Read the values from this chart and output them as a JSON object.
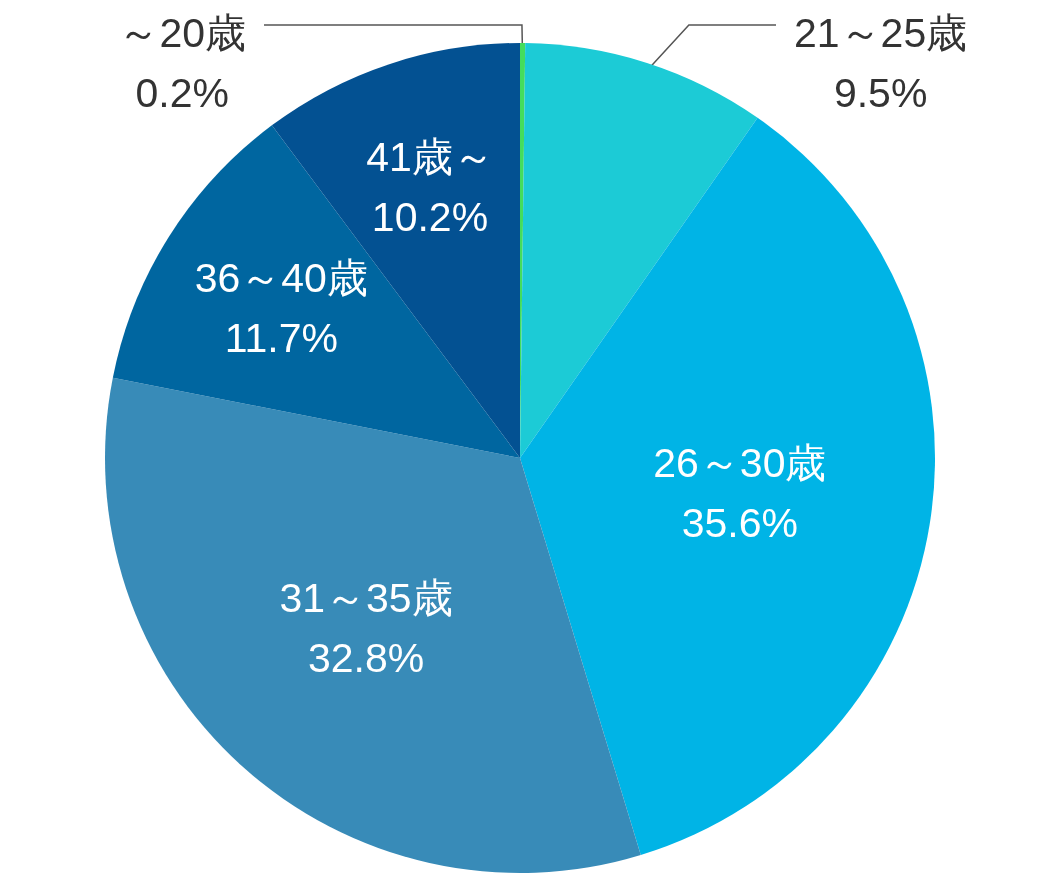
{
  "chart_data": {
    "type": "pie",
    "categories": [
      "～20歳",
      "21～25歳",
      "26～30歳",
      "31～35歳",
      "36～40歳",
      "41歳～"
    ],
    "values": [
      0.2,
      9.5,
      35.6,
      32.8,
      11.7,
      10.2
    ],
    "value_labels": [
      "0.2%",
      "9.5%",
      "35.6%",
      "32.8%",
      "11.7%",
      "10.2%"
    ],
    "colors": [
      "#44dd5c",
      "#1ccbd6",
      "#00b4e6",
      "#388bb8",
      "#0066a0",
      "#035192"
    ]
  }
}
